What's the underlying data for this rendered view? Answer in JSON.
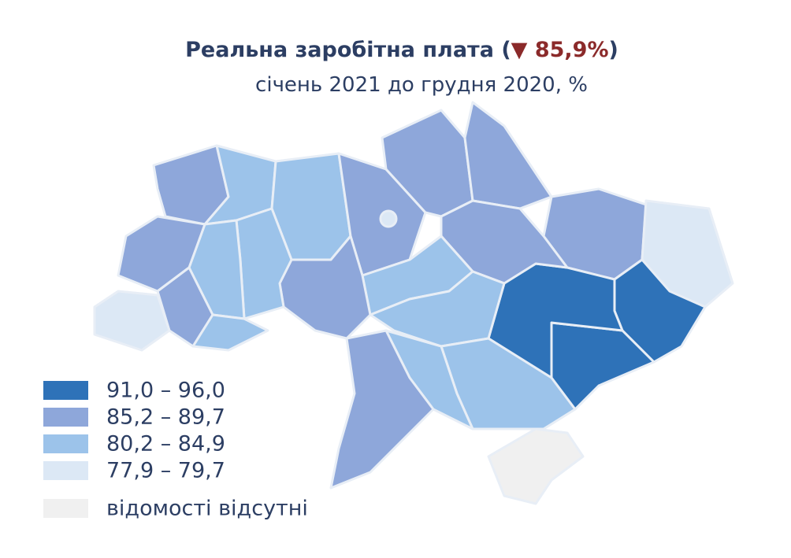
{
  "header": {
    "title": "Реальна заробітна плата (",
    "change": "▼ 85,9%",
    "title_close": ")",
    "subtitle": "січень 2021 до грудня 2020, %"
  },
  "legend": {
    "items": [
      {
        "label": "91,0 – 96,0",
        "color": "#2e72b8"
      },
      {
        "label": "85,2 – 89,7",
        "color": "#8ea7da"
      },
      {
        "label": "80,2 – 84,9",
        "color": "#9cc3ea"
      },
      {
        "label": "77,9 – 79,7",
        "color": "#dce8f5"
      },
      {
        "label": "відомості відсутні",
        "color": "#f0f0f0"
      }
    ]
  }
}
